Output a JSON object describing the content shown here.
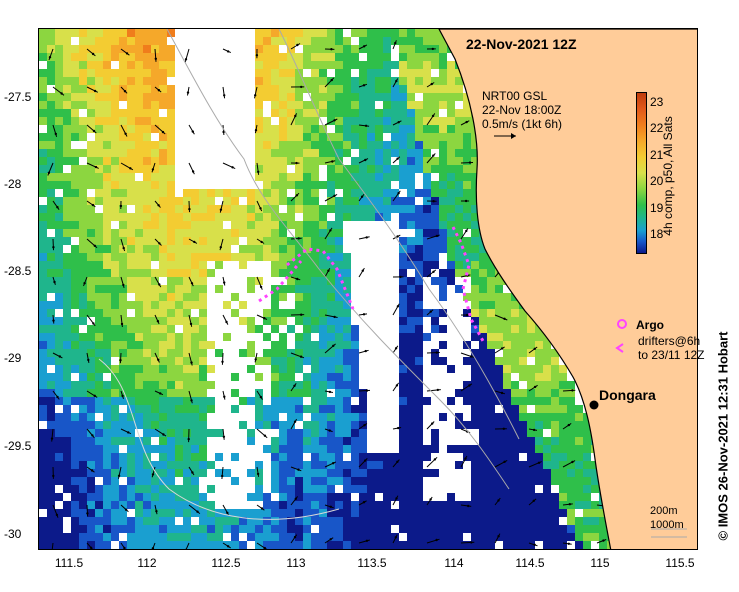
{
  "title": "22-Nov-2021 12Z",
  "current_info": {
    "line1": "NRT00 GSL",
    "line2": "22-Nov 18:00Z",
    "line3": "0.5m/s (1kt 6h)"
  },
  "colorbar": {
    "label": "4h comp, p50, All Sats",
    "ticks": [
      "23",
      "22",
      "21",
      "20",
      "19",
      "18"
    ]
  },
  "legend": {
    "argo_label": "Argo",
    "drifters_line1": "drifters@6h",
    "drifters_line2": "to 23/11 12Z",
    "argo_color": "#ff44ff",
    "drifter_color": "#ff44ff"
  },
  "place": {
    "name": "Dongara"
  },
  "isobaths": {
    "line1": "200m",
    "line2": "1000m"
  },
  "credit": "© IMOS 26-Nov-2021 12:31 Hobart",
  "axes": {
    "x_ticks": [
      "111.5",
      "112",
      "112.5",
      "113",
      "113.5",
      "114",
      "114.5",
      "115",
      "115.5"
    ],
    "y_ticks": [
      "-27.5",
      "-28",
      "-28.5",
      "-29",
      "-29.5",
      "-30"
    ]
  },
  "colors": {
    "land": "#ffcc99",
    "coast": "#000000",
    "isobath": "#aaaaaa",
    "no_data": "#ffffff"
  }
}
